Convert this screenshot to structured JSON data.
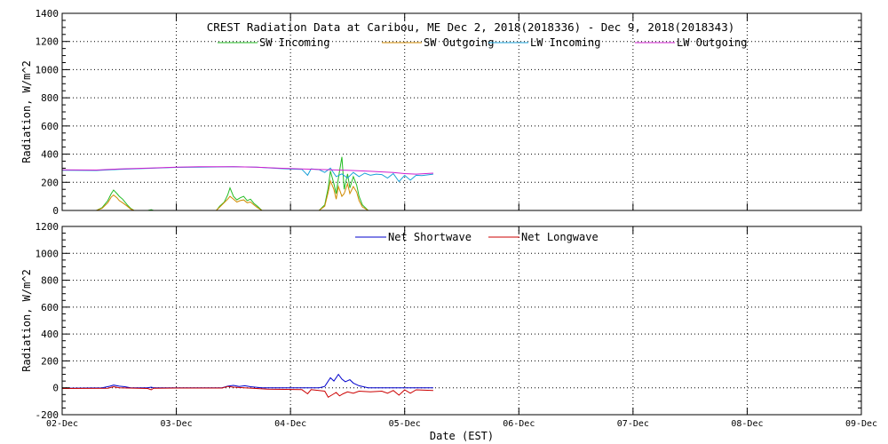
{
  "chart_data": [
    {
      "type": "line",
      "title": "CREST Radiation Data at Caribou, ME   Dec  2, 2018(2018336) - Dec  9, 2018(2018343)",
      "ylabel": "Radiation, W/m^2",
      "xlabel": "",
      "ylim": [
        0,
        1400
      ],
      "yticks": [
        0,
        200,
        400,
        600,
        800,
        1000,
        1200,
        1400
      ],
      "xlim": [
        0,
        7
      ],
      "grid": true,
      "legend_position": "top",
      "series": [
        {
          "name": "SW Incoming",
          "color": "#22bb22",
          "points": [
            [
              0.3,
              0
            ],
            [
              0.35,
              20
            ],
            [
              0.4,
              70
            ],
            [
              0.43,
              120
            ],
            [
              0.45,
              145
            ],
            [
              0.48,
              120
            ],
            [
              0.5,
              100
            ],
            [
              0.53,
              80
            ],
            [
              0.57,
              40
            ],
            [
              0.6,
              15
            ],
            [
              0.63,
              0
            ],
            [
              0.75,
              0
            ],
            [
              0.78,
              5
            ],
            [
              0.8,
              0
            ],
            [
              1.35,
              0
            ],
            [
              1.38,
              30
            ],
            [
              1.42,
              60
            ],
            [
              1.45,
              110
            ],
            [
              1.47,
              160
            ],
            [
              1.5,
              100
            ],
            [
              1.53,
              75
            ],
            [
              1.56,
              90
            ],
            [
              1.59,
              100
            ],
            [
              1.62,
              70
            ],
            [
              1.65,
              80
            ],
            [
              1.68,
              50
            ],
            [
              1.71,
              30
            ],
            [
              1.75,
              0
            ],
            [
              2.25,
              0
            ],
            [
              2.3,
              40
            ],
            [
              2.33,
              160
            ],
            [
              2.35,
              280
            ],
            [
              2.38,
              190
            ],
            [
              2.4,
              120
            ],
            [
              2.42,
              230
            ],
            [
              2.45,
              380
            ],
            [
              2.47,
              150
            ],
            [
              2.5,
              260
            ],
            [
              2.52,
              160
            ],
            [
              2.55,
              240
            ],
            [
              2.58,
              180
            ],
            [
              2.6,
              100
            ],
            [
              2.63,
              40
            ],
            [
              2.68,
              0
            ],
            [
              2.7,
              0
            ]
          ]
        },
        {
          "name": "SW Outgoing",
          "color": "#d08a00",
          "points": [
            [
              0.3,
              0
            ],
            [
              0.35,
              15
            ],
            [
              0.4,
              55
            ],
            [
              0.43,
              95
            ],
            [
              0.45,
              110
            ],
            [
              0.48,
              90
            ],
            [
              0.5,
              70
            ],
            [
              0.53,
              55
            ],
            [
              0.57,
              30
            ],
            [
              0.6,
              10
            ],
            [
              0.63,
              0
            ],
            [
              1.35,
              0
            ],
            [
              1.4,
              40
            ],
            [
              1.45,
              80
            ],
            [
              1.47,
              100
            ],
            [
              1.5,
              80
            ],
            [
              1.53,
              60
            ],
            [
              1.56,
              70
            ],
            [
              1.59,
              75
            ],
            [
              1.62,
              55
            ],
            [
              1.65,
              60
            ],
            [
              1.68,
              40
            ],
            [
              1.71,
              20
            ],
            [
              1.75,
              0
            ],
            [
              2.25,
              0
            ],
            [
              2.3,
              30
            ],
            [
              2.33,
              130
            ],
            [
              2.35,
              210
            ],
            [
              2.38,
              150
            ],
            [
              2.4,
              80
            ],
            [
              2.42,
              170
            ],
            [
              2.45,
              100
            ],
            [
              2.47,
              120
            ],
            [
              2.5,
              190
            ],
            [
              2.52,
              120
            ],
            [
              2.55,
              170
            ],
            [
              2.58,
              130
            ],
            [
              2.6,
              70
            ],
            [
              2.63,
              25
            ],
            [
              2.68,
              0
            ]
          ]
        },
        {
          "name": "LW Incoming",
          "color": "#1aa0d8",
          "points": [
            [
              0,
              285
            ],
            [
              0.3,
              284
            ],
            [
              0.5,
              292
            ],
            [
              0.8,
              300
            ],
            [
              1.0,
              306
            ],
            [
              1.2,
              308
            ],
            [
              1.5,
              310
            ],
            [
              1.7,
              307
            ],
            [
              1.9,
              298
            ],
            [
              2.0,
              294
            ],
            [
              2.1,
              292
            ],
            [
              2.15,
              250
            ],
            [
              2.18,
              295
            ],
            [
              2.25,
              290
            ],
            [
              2.3,
              270
            ],
            [
              2.35,
              300
            ],
            [
              2.4,
              240
            ],
            [
              2.45,
              260
            ],
            [
              2.5,
              230
            ],
            [
              2.55,
              270
            ],
            [
              2.6,
              240
            ],
            [
              2.65,
              265
            ],
            [
              2.7,
              250
            ],
            [
              2.75,
              258
            ],
            [
              2.8,
              255
            ],
            [
              2.85,
              230
            ],
            [
              2.9,
              262
            ],
            [
              2.95,
              205
            ],
            [
              3.0,
              250
            ],
            [
              3.05,
              215
            ],
            [
              3.1,
              250
            ],
            [
              3.15,
              248
            ],
            [
              3.25,
              258
            ]
          ]
        },
        {
          "name": "LW Outgoing",
          "color": "#d020d0",
          "points": [
            [
              0,
              288
            ],
            [
              0.3,
              287
            ],
            [
              0.5,
              295
            ],
            [
              0.8,
              302
            ],
            [
              1.0,
              308
            ],
            [
              1.2,
              310
            ],
            [
              1.5,
              310
            ],
            [
              1.7,
              307
            ],
            [
              1.9,
              300
            ],
            [
              2.1,
              295
            ],
            [
              2.3,
              290
            ],
            [
              2.5,
              285
            ],
            [
              2.7,
              278
            ],
            [
              2.9,
              270
            ],
            [
              3.0,
              262
            ],
            [
              3.1,
              258
            ],
            [
              3.25,
              265
            ]
          ]
        }
      ]
    },
    {
      "type": "line",
      "ylabel": "Radiation, W/m^2",
      "xlabel": "Date (EST)",
      "ylim": [
        -200,
        1200
      ],
      "yticks": [
        -200,
        0,
        200,
        400,
        600,
        800,
        1000,
        1200
      ],
      "xlim": [
        0,
        7
      ],
      "grid": true,
      "legend_position": "top",
      "categories": [
        "02-Dec",
        "03-Dec",
        "04-Dec",
        "05-Dec",
        "06-Dec",
        "07-Dec",
        "08-Dec",
        "09-Dec"
      ],
      "series": [
        {
          "name": "Net Shortwave",
          "color": "#0000cc",
          "points": [
            [
              0,
              -3
            ],
            [
              0.35,
              0
            ],
            [
              0.42,
              12
            ],
            [
              0.45,
              20
            ],
            [
              0.5,
              12
            ],
            [
              0.55,
              8
            ],
            [
              0.6,
              0
            ],
            [
              0.75,
              0
            ],
            [
              0.78,
              5
            ],
            [
              0.8,
              0
            ],
            [
              1.4,
              0
            ],
            [
              1.45,
              12
            ],
            [
              1.5,
              18
            ],
            [
              1.55,
              10
            ],
            [
              1.6,
              15
            ],
            [
              1.65,
              8
            ],
            [
              1.75,
              0
            ],
            [
              2.25,
              0
            ],
            [
              2.3,
              10
            ],
            [
              2.35,
              75
            ],
            [
              2.38,
              50
            ],
            [
              2.42,
              100
            ],
            [
              2.45,
              65
            ],
            [
              2.48,
              45
            ],
            [
              2.52,
              60
            ],
            [
              2.55,
              35
            ],
            [
              2.6,
              15
            ],
            [
              2.68,
              0
            ],
            [
              3.25,
              0
            ]
          ]
        },
        {
          "name": "Net Longwave",
          "color": "#cc0000",
          "points": [
            [
              0,
              -5
            ],
            [
              0.4,
              -3
            ],
            [
              0.45,
              8
            ],
            [
              0.5,
              0
            ],
            [
              0.75,
              -5
            ],
            [
              0.78,
              -15
            ],
            [
              0.8,
              -3
            ],
            [
              1.0,
              -2
            ],
            [
              1.4,
              -2
            ],
            [
              1.45,
              10
            ],
            [
              1.5,
              5
            ],
            [
              1.6,
              0
            ],
            [
              1.8,
              -10
            ],
            [
              2.1,
              -14
            ],
            [
              2.15,
              -45
            ],
            [
              2.18,
              -14
            ],
            [
              2.3,
              -25
            ],
            [
              2.33,
              -70
            ],
            [
              2.36,
              -55
            ],
            [
              2.4,
              -35
            ],
            [
              2.43,
              -60
            ],
            [
              2.46,
              -45
            ],
            [
              2.5,
              -30
            ],
            [
              2.55,
              -40
            ],
            [
              2.6,
              -25
            ],
            [
              2.7,
              -30
            ],
            [
              2.8,
              -25
            ],
            [
              2.85,
              -40
            ],
            [
              2.9,
              -20
            ],
            [
              2.95,
              -55
            ],
            [
              3.0,
              -15
            ],
            [
              3.05,
              -40
            ],
            [
              3.1,
              -15
            ],
            [
              3.25,
              -20
            ]
          ]
        }
      ]
    }
  ]
}
